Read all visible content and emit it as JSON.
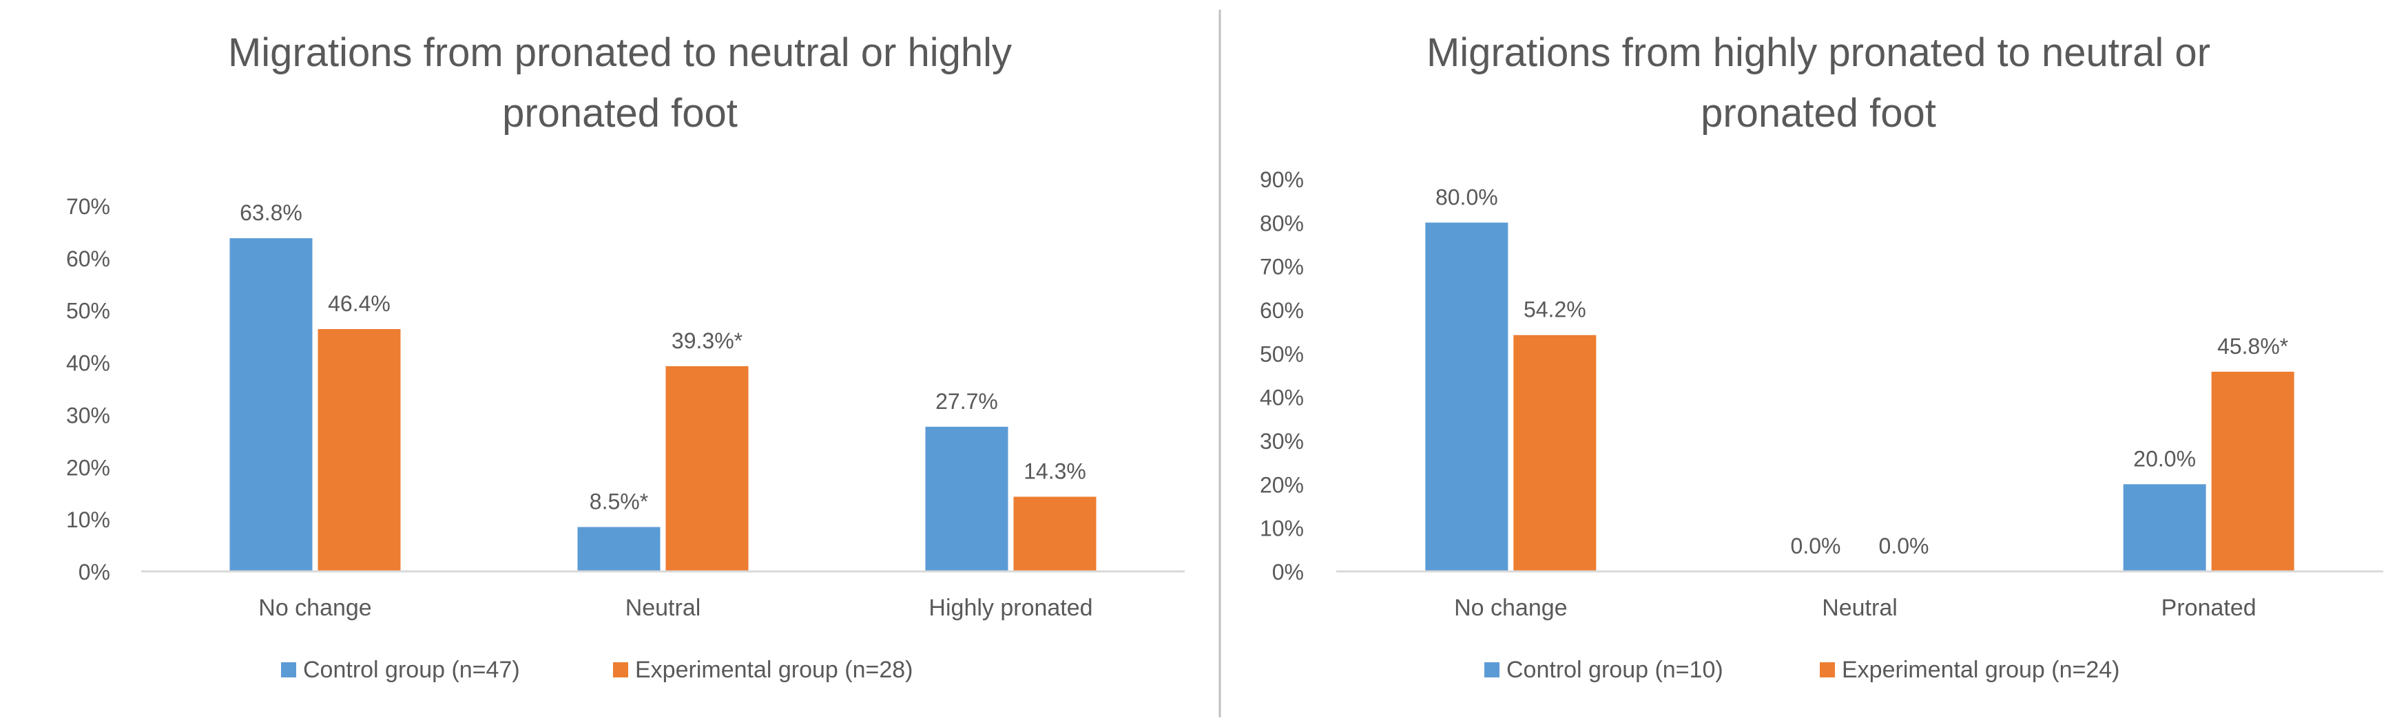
{
  "chart_data": [
    {
      "type": "bar",
      "title_lines": [
        "Migrations from pronated to neutral or  highly",
        "pronated foot"
      ],
      "categories": [
        "No change",
        "Neutral",
        "Highly pronated"
      ],
      "series": [
        {
          "name": "Control group (n=47)",
          "color": "#5B9BD5",
          "values": [
            63.8,
            8.5,
            27.7
          ],
          "labels": [
            "63.8%",
            "8.5%*",
            "27.7%"
          ]
        },
        {
          "name": "Experimental group (n=28)",
          "color": "#ED7D31",
          "values": [
            46.4,
            39.3,
            14.3
          ],
          "labels": [
            "46.4%",
            "39.3%*",
            "14.3%"
          ]
        }
      ],
      "ylim": [
        0,
        70
      ],
      "yticks": [
        "0%",
        "10%",
        "20%",
        "30%",
        "40%",
        "50%",
        "60%",
        "70%"
      ],
      "xlabel": "",
      "ylabel": "",
      "legend": "bottom"
    },
    {
      "type": "bar",
      "title_lines": [
        "Migrations from highly pronated to neutral or",
        "pronated foot"
      ],
      "categories": [
        "No change",
        "Neutral",
        "Pronated"
      ],
      "series": [
        {
          "name": "Control group (n=10)",
          "color": "#5B9BD5",
          "values": [
            80.0,
            0.0,
            20.0
          ],
          "labels": [
            "80.0%",
            "0.0%",
            "20.0%"
          ]
        },
        {
          "name": "Experimental group (n=24)",
          "color": "#ED7D31",
          "values": [
            54.2,
            0.0,
            45.8
          ],
          "labels": [
            "54.2%",
            "0.0%",
            "45.8%*"
          ]
        }
      ],
      "ylim": [
        0,
        90
      ],
      "yticks": [
        "0%",
        "10%",
        "20%",
        "30%",
        "40%",
        "50%",
        "60%",
        "70%",
        "80%",
        "90%"
      ],
      "xlabel": "",
      "ylabel": "",
      "legend": "bottom"
    }
  ],
  "colors": {
    "divider": "#BFBFBF",
    "axis": "#D9D9D9",
    "text": "#595959"
  }
}
